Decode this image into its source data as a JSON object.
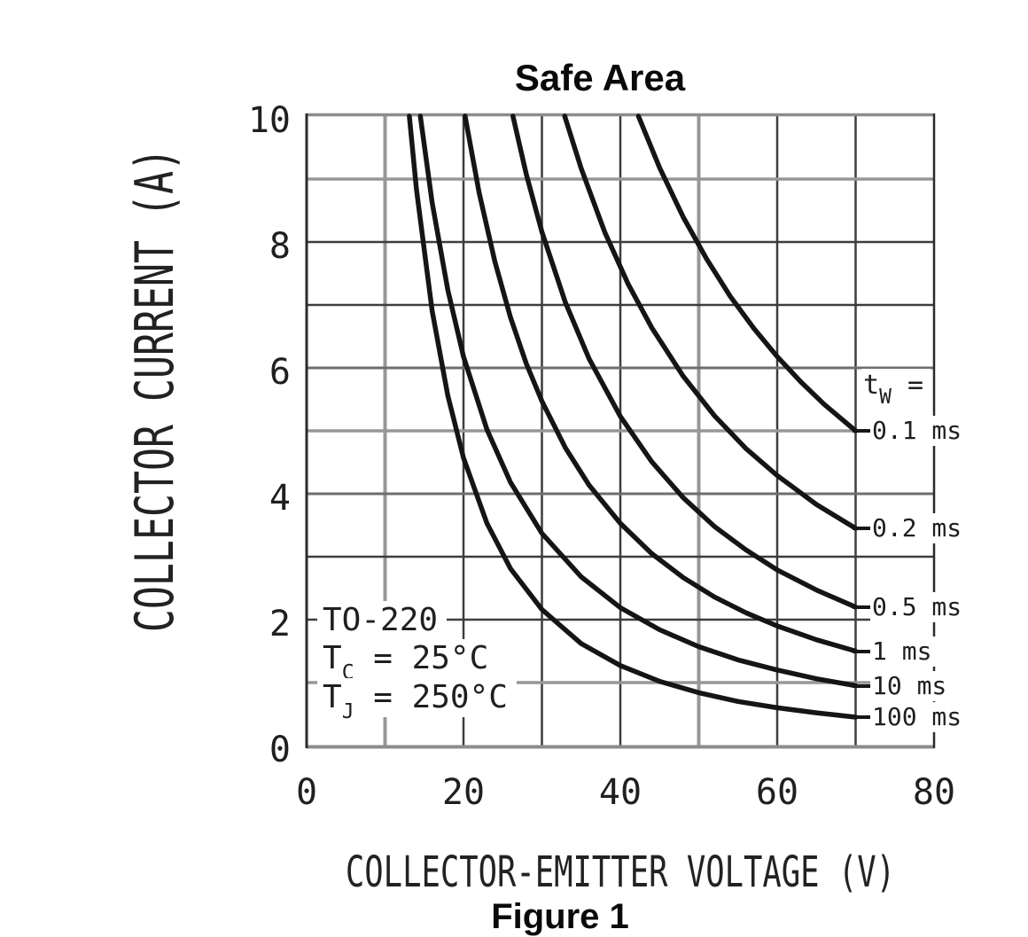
{
  "title": "Safe Area",
  "figure_caption": "Figure 1",
  "annotation": {
    "lines": [
      {
        "pre": "TO-220",
        "sub": "",
        "post": ""
      },
      {
        "pre": "T",
        "sub": "C",
        "post": " = 25°C"
      },
      {
        "pre": "T",
        "sub": "J",
        "post": " = 250°C"
      }
    ]
  },
  "legend_header": {
    "pre": "t",
    "sub": "W",
    "post": " ="
  },
  "chart_data": {
    "type": "line",
    "title": "Safe Area",
    "xlabel": "COLLECTOR-EMITTER VOLTAGE (V)",
    "ylabel": "COLLECTOR CURRENT (A)",
    "xlim": [
      0,
      80
    ],
    "ylim": [
      0,
      10
    ],
    "x_ticks": [
      {
        "v": 0,
        "label": "0"
      },
      {
        "v": 20,
        "label": "20"
      },
      {
        "v": 40,
        "label": "40"
      },
      {
        "v": 60,
        "label": "60"
      },
      {
        "v": 80,
        "label": "80"
      }
    ],
    "y_ticks": [
      {
        "v": 10,
        "label": "10"
      },
      {
        "v": 8,
        "label": "8"
      },
      {
        "v": 6,
        "label": "6"
      },
      {
        "v": 4,
        "label": "4"
      },
      {
        "v": 2,
        "label": "2"
      },
      {
        "v": 0,
        "label": "0"
      }
    ],
    "grid": {
      "x_step": 10,
      "y_step": 1,
      "on": true
    },
    "legend_position": "right-of-curves-at-70V",
    "series": [
      {
        "name": "0.1 ms",
        "points": [
          [
            42.3,
            10
          ],
          [
            45,
            9.18
          ],
          [
            48,
            8.4
          ],
          [
            51,
            7.73
          ],
          [
            54,
            7.14
          ],
          [
            57,
            6.63
          ],
          [
            60,
            6.18
          ],
          [
            63,
            5.78
          ],
          [
            66,
            5.42
          ],
          [
            70,
            5.0
          ]
        ]
      },
      {
        "name": "0.2 ms",
        "points": [
          [
            32.9,
            10
          ],
          [
            35,
            9.17
          ],
          [
            38,
            8.16
          ],
          [
            41,
            7.33
          ],
          [
            44,
            6.64
          ],
          [
            48,
            5.87
          ],
          [
            52,
            5.24
          ],
          [
            56,
            4.72
          ],
          [
            60,
            4.29
          ],
          [
            65,
            3.83
          ],
          [
            70,
            3.45
          ]
        ]
      },
      {
        "name": "0.5 ms",
        "points": [
          [
            26.3,
            10
          ],
          [
            28,
            9.08
          ],
          [
            30,
            8.16
          ],
          [
            33,
            7.04
          ],
          [
            36,
            6.15
          ],
          [
            40,
            5.23
          ],
          [
            44,
            4.51
          ],
          [
            48,
            3.94
          ],
          [
            52,
            3.48
          ],
          [
            56,
            3.11
          ],
          [
            60,
            2.79
          ],
          [
            65,
            2.47
          ],
          [
            70,
            2.2
          ]
        ]
      },
      {
        "name": "1 ms",
        "points": [
          [
            20.2,
            10
          ],
          [
            22,
            8.78
          ],
          [
            24,
            7.69
          ],
          [
            26,
            6.8
          ],
          [
            28,
            6.07
          ],
          [
            30,
            5.47
          ],
          [
            33,
            4.73
          ],
          [
            36,
            4.14
          ],
          [
            40,
            3.53
          ],
          [
            44,
            3.05
          ],
          [
            48,
            2.67
          ],
          [
            52,
            2.36
          ],
          [
            56,
            2.11
          ],
          [
            60,
            1.9
          ],
          [
            65,
            1.68
          ],
          [
            70,
            1.5
          ]
        ]
      },
      {
        "name": "10 ms",
        "points": [
          [
            14.5,
            10
          ],
          [
            16,
            8.63
          ],
          [
            18,
            7.24
          ],
          [
            20,
            6.18
          ],
          [
            23,
            5.02
          ],
          [
            26,
            4.18
          ],
          [
            30,
            3.37
          ],
          [
            35,
            2.68
          ],
          [
            40,
            2.19
          ],
          [
            45,
            1.84
          ],
          [
            50,
            1.57
          ],
          [
            55,
            1.36
          ],
          [
            60,
            1.2
          ],
          [
            65,
            1.06
          ],
          [
            70,
            0.95
          ]
        ]
      },
      {
        "name": "100 ms",
        "points": [
          [
            13.1,
            10
          ],
          [
            14,
            8.84
          ],
          [
            16,
            6.91
          ],
          [
            18,
            5.56
          ],
          [
            20,
            4.57
          ],
          [
            23,
            3.53
          ],
          [
            26,
            2.81
          ],
          [
            30,
            2.16
          ],
          [
            35,
            1.62
          ],
          [
            40,
            1.27
          ],
          [
            45,
            1.02
          ],
          [
            50,
            0.84
          ],
          [
            55,
            0.7
          ],
          [
            60,
            0.6
          ],
          [
            65,
            0.52
          ],
          [
            70,
            0.45
          ]
        ]
      }
    ]
  },
  "style": {
    "curve_color": "#151515",
    "grid_dark_color": "#3d3d3d",
    "grid_mid_color": "#6e6e6e",
    "grid_gray_color": "#979797",
    "border_dark_color": "#2b2b2b",
    "border_gray_color": "#8c8c8c",
    "gray_x_lines": [
      10,
      50
    ],
    "gray_y_lines": [
      1,
      5,
      9
    ],
    "mid_y_lines": [
      4,
      6
    ]
  }
}
